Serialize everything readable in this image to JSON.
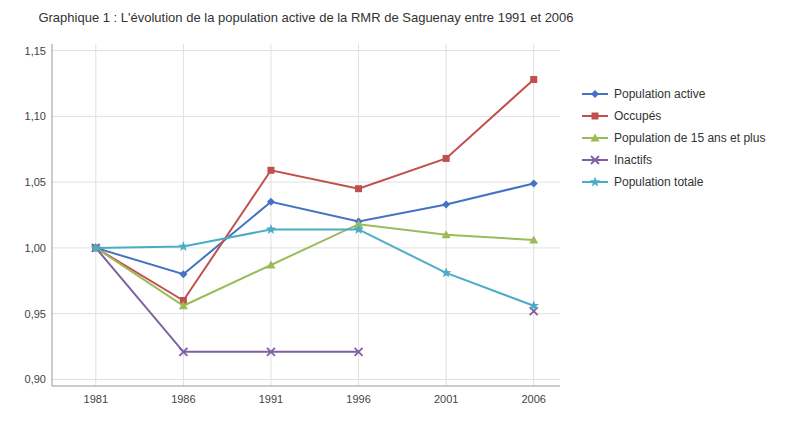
{
  "chart_data": {
    "type": "line",
    "title": "Graphique 1 : L'évolution de la population active de la RMR de Saguenay entre 1991 et 2006",
    "x": [
      1981,
      1986,
      1991,
      1996,
      2001,
      2006
    ],
    "xlim": [
      1978.5,
      2007.5
    ],
    "xticks": [
      1981,
      1986,
      1991,
      1996,
      2001,
      2006
    ],
    "ylim": [
      0.895,
      1.155
    ],
    "yticks": [
      {
        "value": 0.9,
        "label": "0,90"
      },
      {
        "value": 0.95,
        "label": "0,95"
      },
      {
        "value": 1.0,
        "label": "1,00"
      },
      {
        "value": 1.05,
        "label": "1,05"
      },
      {
        "value": 1.1,
        "label": "1,10"
      },
      {
        "value": 1.15,
        "label": "1,15"
      }
    ],
    "grid": true,
    "legend": "right",
    "series": [
      {
        "name": "Population active",
        "color": "#4472C4",
        "marker": "diamond",
        "values": [
          1.0,
          0.98,
          1.035,
          1.02,
          1.033,
          1.049
        ]
      },
      {
        "name": "Occupés",
        "color": "#C0504D",
        "marker": "square",
        "values": [
          1.0,
          0.96,
          1.059,
          1.045,
          1.068,
          1.128
        ]
      },
      {
        "name": "Population de 15 ans et plus",
        "color": "#9BBB59",
        "marker": "triangle",
        "values": [
          1.0,
          0.956,
          0.987,
          1.018,
          1.01,
          1.006
        ]
      },
      {
        "name": "Inactifs",
        "color": "#7F60A0",
        "marker": "x",
        "values": [
          1.0,
          0.921,
          0.921,
          0.921,
          null,
          0.952
        ]
      },
      {
        "name": "Population totale",
        "color": "#4BACC6",
        "marker": "star",
        "values": [
          1.0,
          1.001,
          1.014,
          1.014,
          0.981,
          0.956
        ]
      }
    ]
  }
}
